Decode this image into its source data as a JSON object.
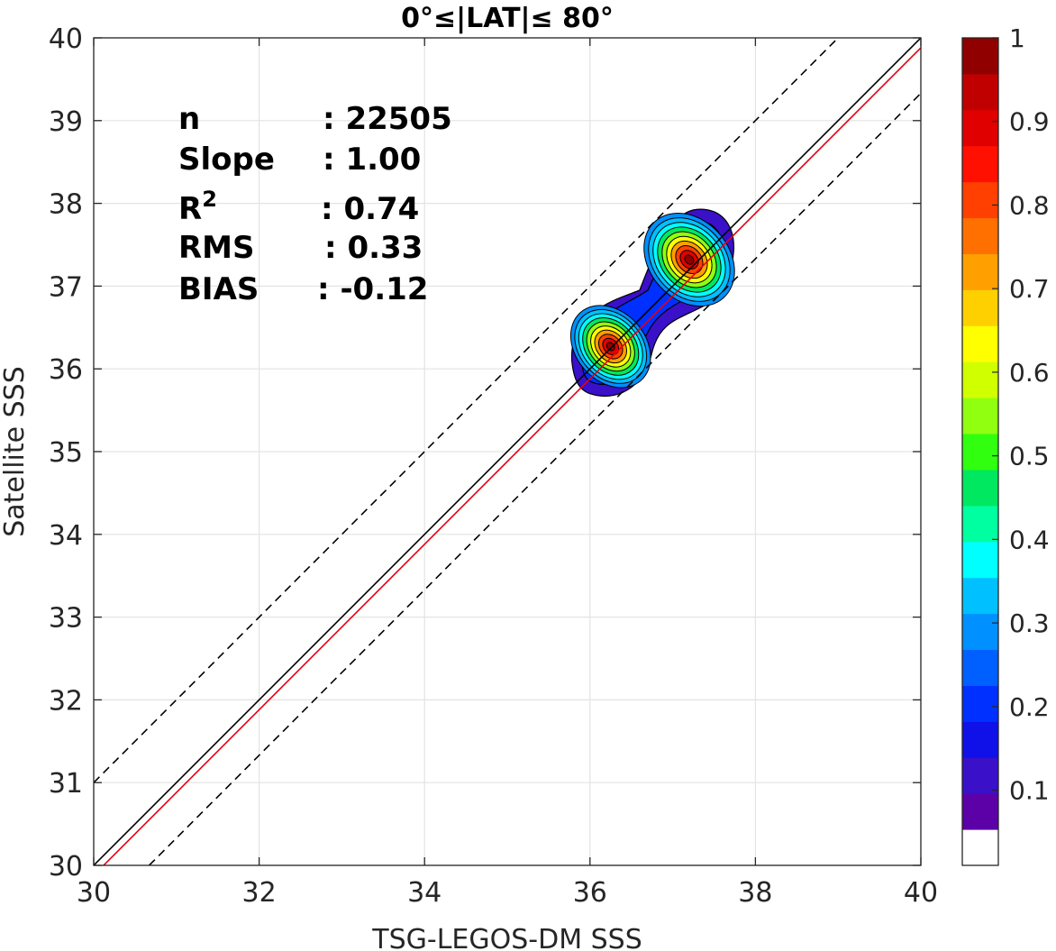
{
  "chart_data": {
    "type": "heatmap",
    "title": "0°≤|LAT|≤ 80°",
    "xlabel": "TSG-LEGOS-DM SSS",
    "ylabel": "Satellite SSS",
    "xlim": [
      30,
      40
    ],
    "ylim": [
      30,
      40
    ],
    "xticks": [
      "30",
      "32",
      "34",
      "36",
      "38",
      "40"
    ],
    "yticks": [
      "30",
      "31",
      "32",
      "33",
      "34",
      "35",
      "36",
      "37",
      "38",
      "39",
      "40"
    ],
    "grid": true,
    "stats": [
      {
        "label": "n",
        "sep": ": ",
        "value": "22505"
      },
      {
        "label": "Slope",
        "sep": ": ",
        "value": "1.00"
      },
      {
        "label": "R",
        "sup": "2",
        "sep": ": ",
        "value": "0.74"
      },
      {
        "label": "RMS",
        "sep": ": ",
        "value": "0.33"
      },
      {
        "label": "BIAS",
        "sep": ": ",
        "value": "-0.12"
      }
    ],
    "lines": [
      {
        "name": "identity",
        "style": "solid",
        "color": "#000000",
        "points": [
          [
            30,
            30
          ],
          [
            40,
            40
          ]
        ]
      },
      {
        "name": "fit",
        "style": "solid",
        "color": "#e6000b",
        "points": [
          [
            30,
            29.88
          ],
          [
            40,
            39.88
          ]
        ]
      },
      {
        "name": "upper-bound",
        "style": "dashed",
        "color": "#000000",
        "points": [
          [
            30,
            31.0
          ],
          [
            39,
            40.0
          ]
        ]
      },
      {
        "name": "lower-bound",
        "style": "dashed",
        "color": "#000000",
        "points": [
          [
            30.67,
            30
          ],
          [
            40,
            39.33
          ]
        ]
      }
    ],
    "density_peaks": [
      {
        "x": 36.25,
        "y": 36.27,
        "value": 1.0
      },
      {
        "x": 37.2,
        "y": 37.32,
        "value": 1.0
      }
    ],
    "colorbar": {
      "ticks": [
        "0.1",
        "0.2",
        "0.3",
        "0.4",
        "0.5",
        "0.6",
        "0.7",
        "0.8",
        "0.9",
        "1"
      ],
      "levels": [
        "#ffffff",
        "#5c00a8",
        "#3a10c8",
        "#1010e8",
        "#0030ff",
        "#0060ff",
        "#0090ff",
        "#00c0ff",
        "#00ffff",
        "#00ffa0",
        "#00e860",
        "#30ff10",
        "#90ff10",
        "#d0ff00",
        "#ffff00",
        "#ffd000",
        "#ffa000",
        "#ff7000",
        "#ff4000",
        "#ff1000",
        "#e00000",
        "#c00000",
        "#900000"
      ]
    }
  }
}
